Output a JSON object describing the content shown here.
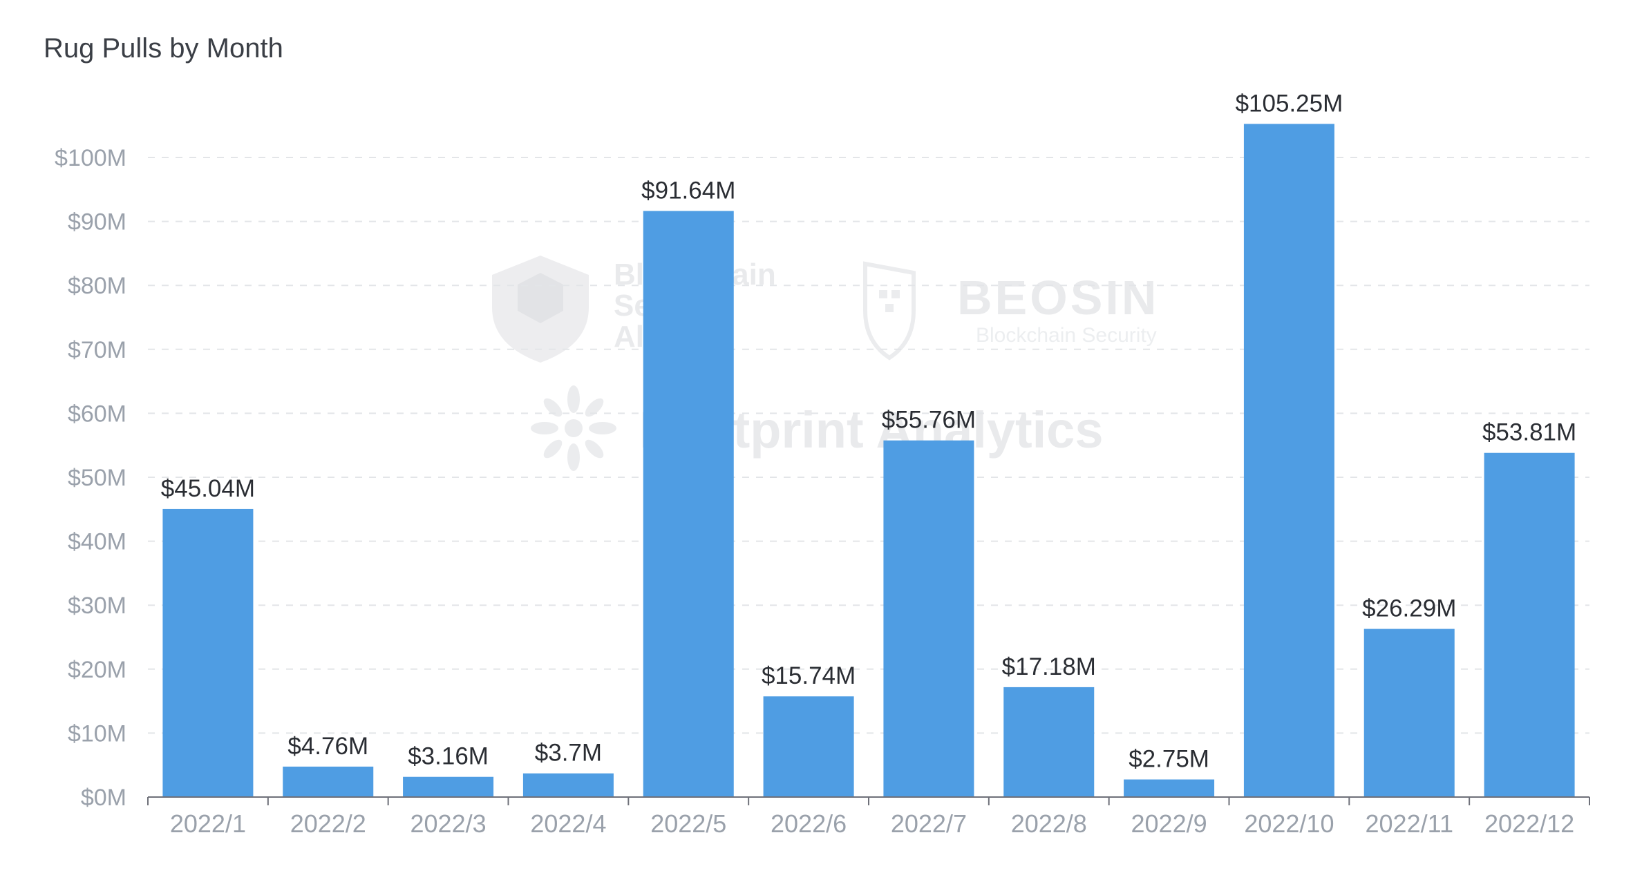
{
  "chart_data": {
    "type": "bar",
    "title": "Rug Pulls by Month",
    "xlabel": "",
    "ylabel": "",
    "categories": [
      "2022/1",
      "2022/2",
      "2022/3",
      "2022/4",
      "2022/5",
      "2022/6",
      "2022/7",
      "2022/8",
      "2022/9",
      "2022/10",
      "2022/11",
      "2022/12"
    ],
    "values": [
      45.04,
      4.76,
      3.16,
      3.7,
      91.64,
      15.74,
      55.76,
      17.18,
      2.75,
      105.25,
      26.29,
      53.81
    ],
    "data_labels": [
      "$45.04M",
      "$4.76M",
      "$3.16M",
      "$3.7M",
      "$91.64M",
      "$15.74M",
      "$55.76M",
      "$17.18M",
      "$2.75M",
      "$105.25M",
      "$26.29M",
      "$53.81M"
    ],
    "yticks": [
      0,
      10,
      20,
      30,
      40,
      50,
      60,
      70,
      80,
      90,
      100
    ],
    "ytick_labels": [
      "$0M",
      "$10M",
      "$20M",
      "$30M",
      "$40M",
      "$50M",
      "$60M",
      "$70M",
      "$80M",
      "$90M",
      "$100M"
    ],
    "ylim": [
      0,
      110
    ],
    "grid": "horizontal-dashed",
    "legend": "none",
    "bar_color": "#4f9de3"
  },
  "watermarks": {
    "bsa_line1": "Blockchain",
    "bsa_line2": "Security",
    "bsa_line3": "Alliance",
    "beosin_name": "BEOSIN",
    "beosin_sub": "Blockchain Security",
    "footprint": "Footprint Analytics",
    "bsa_icon": "shield-cube-icon",
    "beosin_icon": "beosin-shield-icon",
    "footprint_icon": "footprint-flower-icon"
  }
}
